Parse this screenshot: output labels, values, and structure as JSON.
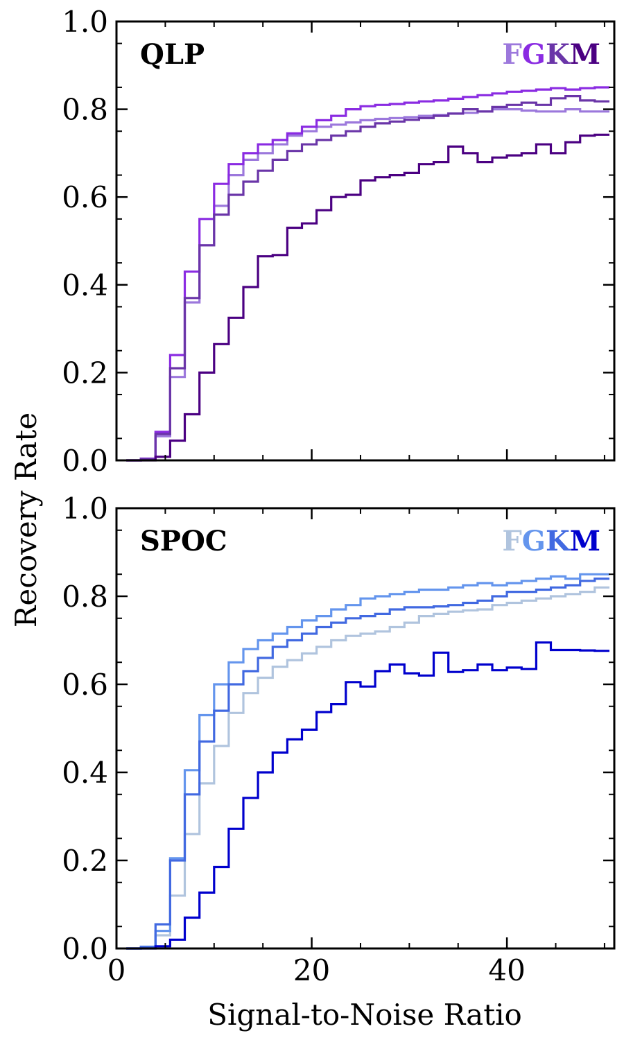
{
  "chart_data": {
    "type": "line",
    "ylabel": "Recovery Rate",
    "xlabel": "Signal-to-Noise Ratio",
    "xlim": [
      0,
      51
    ],
    "ylim": [
      0,
      1
    ],
    "x_ticks": [
      0,
      20,
      40
    ],
    "x_tick_labels": [
      "0",
      "20",
      "40"
    ],
    "y_ticks": [
      0,
      0.2,
      0.4,
      0.6,
      0.8,
      1.0
    ],
    "y_tick_labels": [
      "0.0",
      "0.2",
      "0.4",
      "0.6",
      "0.8",
      "1.0"
    ],
    "bin_edges": [
      1,
      2.5,
      4,
      5.5,
      7,
      8.5,
      10,
      11.5,
      13,
      14.5,
      16,
      17.5,
      19,
      20.5,
      22,
      23.5,
      25,
      26.5,
      28,
      29.5,
      31,
      32.5,
      34,
      35.5,
      37,
      38.5,
      40,
      41.5,
      43,
      44.5,
      46,
      47.5,
      49,
      50.5
    ],
    "panels": [
      {
        "label": "QLP",
        "legend": [
          {
            "letter": "F",
            "color": "#9c78dc"
          },
          {
            "letter": "G",
            "color": "#8a2be2"
          },
          {
            "letter": "K",
            "color": "#6a35a8"
          },
          {
            "letter": "M",
            "color": "#4b0082"
          }
        ],
        "series": [
          {
            "name": "F",
            "color": "#9c78dc",
            "values": [
              0,
              0.003,
              0.055,
              0.19,
              0.36,
              0.49,
              0.58,
              0.65,
              0.685,
              0.7,
              0.72,
              0.74,
              0.75,
              0.76,
              0.765,
              0.77,
              0.775,
              0.778,
              0.78,
              0.782,
              0.785,
              0.787,
              0.79,
              0.792,
              0.795,
              0.8,
              0.8,
              0.797,
              0.795,
              0.795,
              0.8,
              0.795,
              0.795
            ]
          },
          {
            "name": "G",
            "color": "#8a2be2",
            "values": [
              0,
              0.004,
              0.065,
              0.24,
              0.43,
              0.55,
              0.63,
              0.675,
              0.7,
              0.72,
              0.73,
              0.745,
              0.76,
              0.775,
              0.785,
              0.8,
              0.807,
              0.81,
              0.812,
              0.815,
              0.818,
              0.82,
              0.824,
              0.828,
              0.832,
              0.836,
              0.84,
              0.842,
              0.845,
              0.848,
              0.845,
              0.848,
              0.85
            ]
          },
          {
            "name": "K",
            "color": "#6a35a8",
            "values": [
              0,
              0.003,
              0.06,
              0.21,
              0.37,
              0.49,
              0.56,
              0.605,
              0.635,
              0.66,
              0.685,
              0.705,
              0.72,
              0.73,
              0.74,
              0.75,
              0.76,
              0.768,
              0.772,
              0.776,
              0.78,
              0.785,
              0.79,
              0.8,
              0.795,
              0.805,
              0.81,
              0.815,
              0.81,
              0.825,
              0.83,
              0.82,
              0.818
            ]
          },
          {
            "name": "M",
            "color": "#4b0082",
            "values": [
              0,
              0,
              0.008,
              0.045,
              0.105,
              0.2,
              0.265,
              0.325,
              0.395,
              0.465,
              0.468,
              0.53,
              0.54,
              0.57,
              0.6,
              0.605,
              0.638,
              0.645,
              0.65,
              0.655,
              0.675,
              0.68,
              0.715,
              0.7,
              0.68,
              0.69,
              0.695,
              0.7,
              0.72,
              0.7,
              0.725,
              0.74,
              0.742
            ]
          }
        ]
      },
      {
        "label": "SPOC",
        "legend": [
          {
            "letter": "F",
            "color": "#b0c4de"
          },
          {
            "letter": "G",
            "color": "#6495ed"
          },
          {
            "letter": "K",
            "color": "#4169e1"
          },
          {
            "letter": "M",
            "color": "#0000cd"
          }
        ],
        "series": [
          {
            "name": "F",
            "color": "#b0c4de",
            "values": [
              0,
              0.004,
              0.03,
              0.12,
              0.26,
              0.375,
              0.46,
              0.535,
              0.58,
              0.615,
              0.64,
              0.655,
              0.67,
              0.685,
              0.7,
              0.71,
              0.715,
              0.72,
              0.73,
              0.74,
              0.755,
              0.76,
              0.765,
              0.768,
              0.77,
              0.78,
              0.785,
              0.79,
              0.795,
              0.8,
              0.805,
              0.81,
              0.82
            ]
          },
          {
            "name": "G",
            "color": "#6495ed",
            "values": [
              0,
              0.004,
              0.04,
              0.205,
              0.405,
              0.53,
              0.6,
              0.65,
              0.68,
              0.7,
              0.715,
              0.73,
              0.745,
              0.755,
              0.77,
              0.78,
              0.795,
              0.8,
              0.805,
              0.81,
              0.815,
              0.815,
              0.82,
              0.825,
              0.83,
              0.825,
              0.83,
              0.835,
              0.84,
              0.845,
              0.84,
              0.85,
              0.85
            ]
          },
          {
            "name": "K",
            "color": "#4169e1",
            "values": [
              0,
              0.003,
              0.055,
              0.2,
              0.35,
              0.47,
              0.54,
              0.6,
              0.63,
              0.66,
              0.685,
              0.7,
              0.715,
              0.73,
              0.74,
              0.75,
              0.755,
              0.76,
              0.77,
              0.775,
              0.775,
              0.777,
              0.78,
              0.785,
              0.79,
              0.8,
              0.81,
              0.81,
              0.815,
              0.82,
              0.825,
              0.835,
              0.84
            ]
          },
          {
            "name": "M",
            "color": "#0000cd",
            "values": [
              0,
              0,
              0.005,
              0.02,
              0.07,
              0.127,
              0.185,
              0.272,
              0.342,
              0.4,
              0.445,
              0.475,
              0.497,
              0.537,
              0.555,
              0.605,
              0.595,
              0.63,
              0.645,
              0.625,
              0.62,
              0.672,
              0.628,
              0.632,
              0.645,
              0.632,
              0.638,
              0.635,
              0.695,
              0.678,
              0.678,
              0.677,
              0.676
            ]
          }
        ]
      }
    ]
  }
}
